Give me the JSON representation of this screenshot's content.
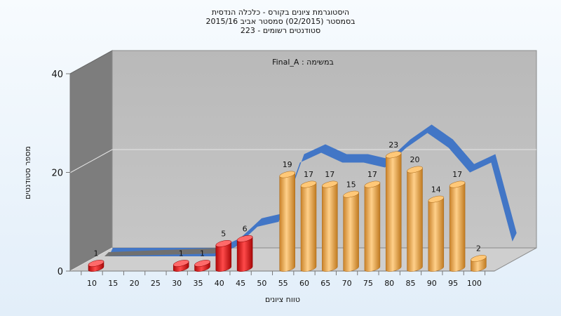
{
  "chart_data": {
    "type": "bar",
    "title_lines": [
      "היסטוגרמת ציונים בקורס - כלכלה הנדסית",
      "בסמסטר  (02/2015)  סמסטר אביב 2015/16",
      "סטודנטים רשומים - 223"
    ],
    "annotation": "במשימה : Final_A",
    "xlabel": "טווח ציונים",
    "ylabel": "מספר סטודנטים",
    "ylim": [
      0,
      40
    ],
    "yticks": [
      0,
      20,
      40
    ],
    "categories": [
      "10",
      "15",
      "20",
      "25",
      "30",
      "35",
      "40",
      "45",
      "50",
      "55",
      "60",
      "65",
      "70",
      "75",
      "80",
      "85",
      "90",
      "95",
      "100"
    ],
    "values": [
      1,
      0,
      0,
      0,
      1,
      1,
      5,
      6,
      0,
      19,
      17,
      17,
      15,
      17,
      23,
      20,
      14,
      17,
      2
    ],
    "bar_colors": {
      "fail": "#e02020",
      "pass": "#f0a840"
    },
    "fail_threshold_index": 8,
    "trend_line": {
      "values": [
        0,
        0,
        0,
        0,
        0,
        0,
        2,
        6,
        7,
        19,
        21,
        19,
        19,
        18,
        22,
        25,
        22,
        17,
        19,
        3
      ],
      "color": "#3b72c6"
    },
    "grid": true
  }
}
